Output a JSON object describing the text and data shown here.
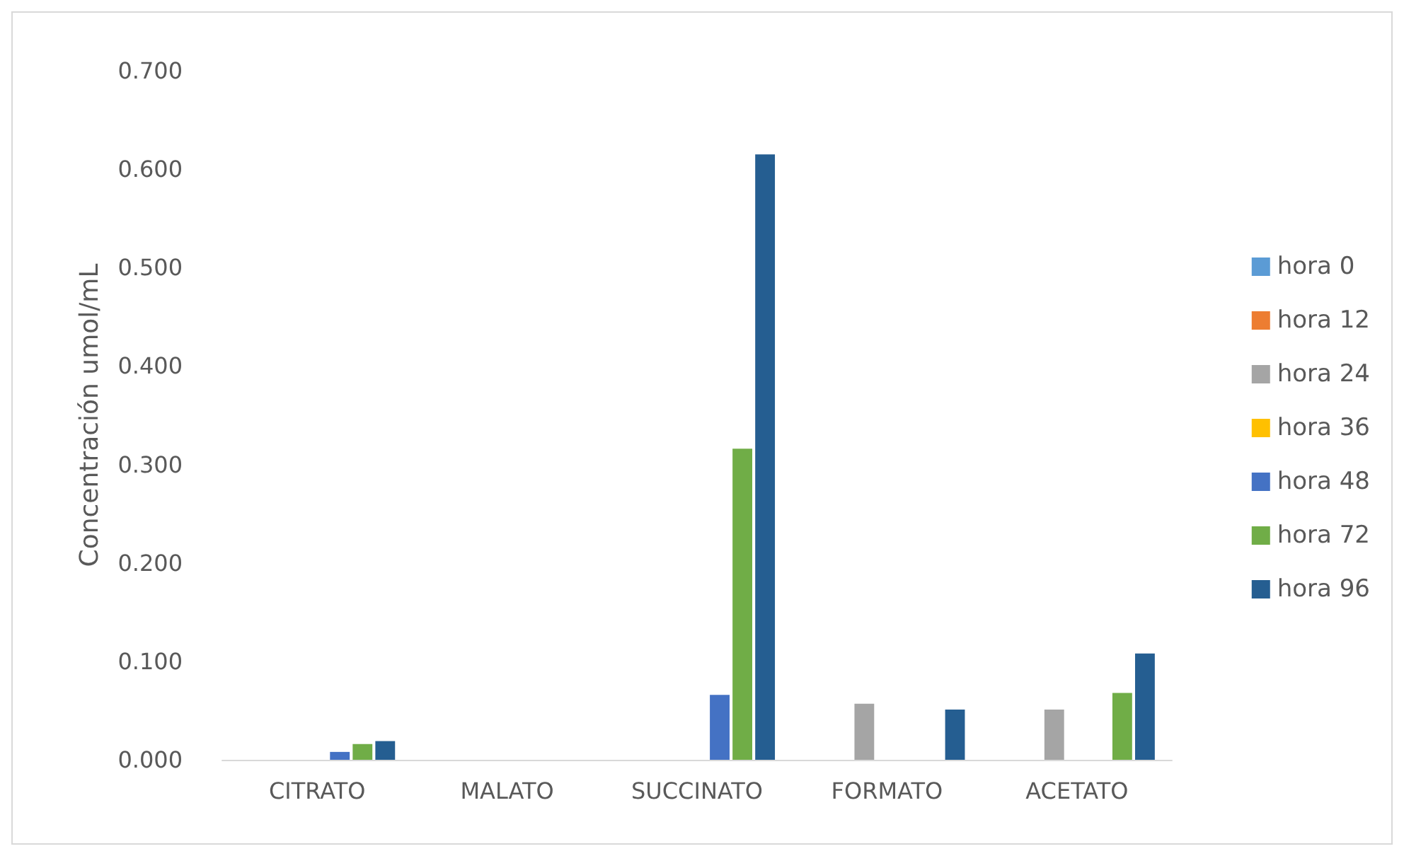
{
  "chart_data": {
    "type": "bar",
    "ylabel": "Concentración umol/mL",
    "categories": [
      "CITRATO",
      "MALATO",
      "SUCCINATO",
      "FORMATO",
      "ACETATO"
    ],
    "series": [
      {
        "name": "hora 0",
        "color": "#5b9bd5",
        "values": [
          0,
          0,
          0,
          0,
          0
        ]
      },
      {
        "name": "hora 12",
        "color": "#ed7d31",
        "values": [
          0,
          0,
          0,
          0,
          0
        ]
      },
      {
        "name": "hora 24",
        "color": "#a5a5a5",
        "values": [
          0,
          0,
          0,
          0.057,
          0.051
        ]
      },
      {
        "name": "hora 36",
        "color": "#ffc000",
        "values": [
          0,
          0,
          0,
          0,
          0
        ]
      },
      {
        "name": "hora 48",
        "color": "#4472c4",
        "values": [
          0.008,
          0,
          0.066,
          0,
          0
        ]
      },
      {
        "name": "hora 72",
        "color": "#70ad47",
        "values": [
          0.016,
          0,
          0.316,
          0,
          0.068
        ]
      },
      {
        "name": "hora 96",
        "color": "#255e91",
        "values": [
          0.019,
          0,
          0.615,
          0.051,
          0.108
        ]
      }
    ],
    "ylim": [
      0,
      0.7
    ],
    "yticks": [
      {
        "value": 0,
        "label": "0.000"
      },
      {
        "value": 0.1,
        "label": "0.100"
      },
      {
        "value": 0.2,
        "label": "0.200"
      },
      {
        "value": 0.3,
        "label": "0.300"
      },
      {
        "value": 0.4,
        "label": "0.400"
      },
      {
        "value": 0.5,
        "label": "0.500"
      },
      {
        "value": 0.6,
        "label": "0.600"
      },
      {
        "value": 0.7,
        "label": "0.700"
      }
    ],
    "grid": false,
    "legend": "right"
  }
}
